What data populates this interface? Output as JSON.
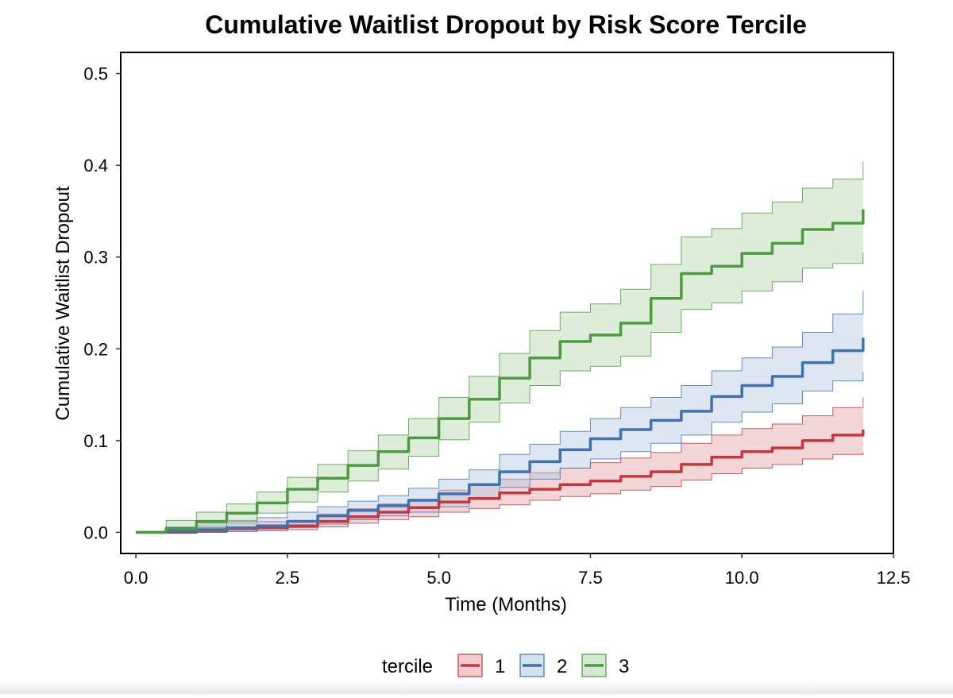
{
  "chart_data": {
    "type": "line",
    "title": "Cumulative Waitlist Dropout by Risk Score Tercile",
    "xlabel": "Time (Months)",
    "ylabel": "Cumulative Waitlist Dropout",
    "xlim": [
      -0.25,
      12.5
    ],
    "ylim": [
      -0.023,
      0.523
    ],
    "x_ticks": [
      0,
      2.5,
      5,
      7.5,
      10,
      12.5
    ],
    "x_tick_labels": [
      "0.0",
      "2.5",
      "5.0",
      "7.5",
      "10.0",
      "12.5"
    ],
    "y_ticks": [
      0,
      0.1,
      0.2,
      0.3,
      0.4,
      0.5
    ],
    "y_tick_labels": [
      "0.0",
      "0.1",
      "0.2",
      "0.3",
      "0.4",
      "0.5"
    ],
    "legend": {
      "title": "tercile",
      "position": "bottom"
    },
    "series": [
      {
        "name": "1",
        "color": "#C9353A",
        "fill": "#E2A3A6",
        "x": [
          0,
          0.5,
          1,
          1.5,
          2,
          2.5,
          3,
          3.5,
          4,
          4.5,
          5,
          5.5,
          6,
          6.5,
          7,
          7.5,
          8,
          8.5,
          9,
          9.5,
          10,
          10.5,
          11,
          11.5,
          12
        ],
        "y": [
          0,
          0,
          0.002,
          0.004,
          0.005,
          0.007,
          0.012,
          0.017,
          0.022,
          0.027,
          0.033,
          0.037,
          0.043,
          0.047,
          0.052,
          0.056,
          0.061,
          0.066,
          0.074,
          0.082,
          0.088,
          0.092,
          0.1,
          0.106,
          0.112
        ],
        "lower": [
          0,
          0,
          0,
          0.001,
          0.002,
          0.003,
          0.006,
          0.01,
          0.014,
          0.017,
          0.022,
          0.026,
          0.03,
          0.035,
          0.039,
          0.042,
          0.046,
          0.05,
          0.057,
          0.064,
          0.07,
          0.074,
          0.08,
          0.085,
          0.087
        ],
        "upper": [
          0,
          0.002,
          0.007,
          0.01,
          0.012,
          0.013,
          0.02,
          0.026,
          0.031,
          0.036,
          0.046,
          0.052,
          0.058,
          0.065,
          0.07,
          0.076,
          0.081,
          0.087,
          0.097,
          0.106,
          0.113,
          0.118,
          0.127,
          0.136,
          0.147
        ]
      },
      {
        "name": "2",
        "color": "#3E73B0",
        "fill": "#B5C8E0",
        "x": [
          0,
          0.5,
          1,
          1.5,
          2,
          2.5,
          3,
          3.5,
          4,
          4.5,
          5,
          5.5,
          6,
          6.5,
          7,
          7.5,
          8,
          8.5,
          9,
          9.5,
          10,
          10.5,
          11,
          11.5,
          12
        ],
        "y": [
          0,
          0.001,
          0.003,
          0.005,
          0.007,
          0.012,
          0.018,
          0.024,
          0.029,
          0.035,
          0.042,
          0.052,
          0.066,
          0.077,
          0.09,
          0.102,
          0.112,
          0.122,
          0.132,
          0.148,
          0.16,
          0.17,
          0.185,
          0.198,
          0.212
        ],
        "lower": [
          0,
          0,
          0,
          0.001,
          0.002,
          0.005,
          0.009,
          0.014,
          0.018,
          0.022,
          0.028,
          0.037,
          0.049,
          0.058,
          0.07,
          0.08,
          0.088,
          0.097,
          0.106,
          0.12,
          0.131,
          0.14,
          0.154,
          0.165,
          0.175
        ],
        "upper": [
          0,
          0.006,
          0.01,
          0.013,
          0.016,
          0.022,
          0.028,
          0.034,
          0.04,
          0.048,
          0.058,
          0.068,
          0.085,
          0.096,
          0.11,
          0.124,
          0.136,
          0.147,
          0.16,
          0.176,
          0.19,
          0.202,
          0.218,
          0.238,
          0.263
        ]
      },
      {
        "name": "3",
        "color": "#4D9B40",
        "fill": "#B3D6AC",
        "x": [
          0,
          0.5,
          1,
          1.5,
          2,
          2.5,
          3,
          3.5,
          4,
          4.5,
          5,
          5.5,
          6,
          6.5,
          7,
          7.5,
          8,
          8.5,
          9,
          9.5,
          10,
          10.5,
          11,
          11.5,
          12
        ],
        "y": [
          0,
          0.004,
          0.012,
          0.021,
          0.032,
          0.047,
          0.059,
          0.073,
          0.088,
          0.103,
          0.124,
          0.145,
          0.168,
          0.19,
          0.208,
          0.215,
          0.228,
          0.255,
          0.282,
          0.29,
          0.304,
          0.315,
          0.33,
          0.337,
          0.352
        ],
        "lower": [
          0,
          0,
          0.005,
          0.012,
          0.021,
          0.033,
          0.044,
          0.056,
          0.069,
          0.083,
          0.101,
          0.12,
          0.141,
          0.16,
          0.176,
          0.181,
          0.192,
          0.218,
          0.243,
          0.25,
          0.263,
          0.273,
          0.288,
          0.293,
          0.305
        ],
        "upper": [
          0,
          0.013,
          0.022,
          0.031,
          0.044,
          0.06,
          0.074,
          0.089,
          0.106,
          0.124,
          0.147,
          0.17,
          0.195,
          0.22,
          0.24,
          0.249,
          0.265,
          0.292,
          0.322,
          0.331,
          0.348,
          0.36,
          0.375,
          0.385,
          0.404
        ]
      }
    ]
  }
}
